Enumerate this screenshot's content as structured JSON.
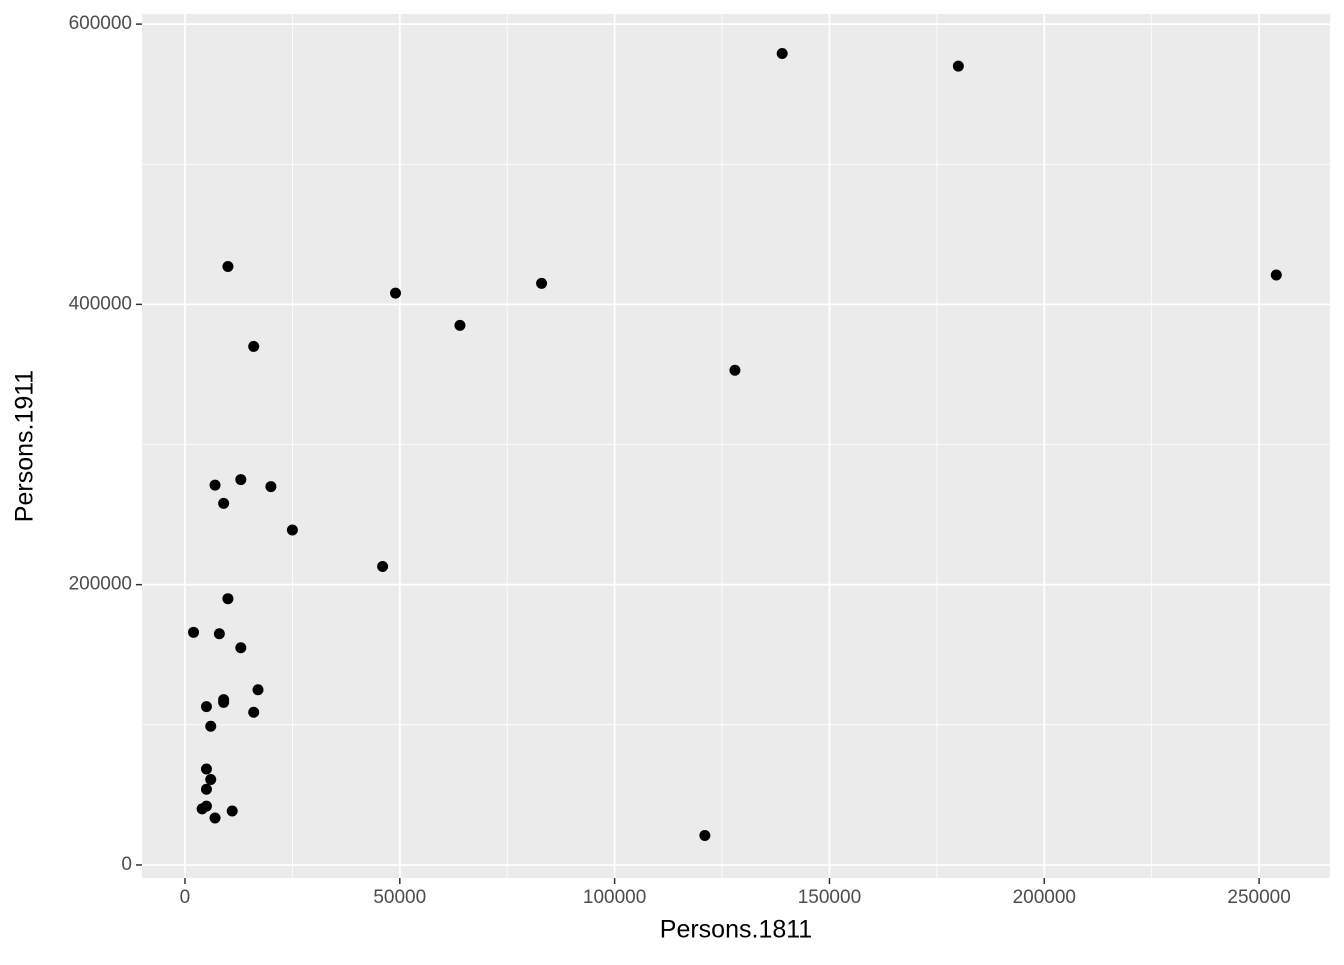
{
  "chart_data": {
    "type": "scatter",
    "x_label": "Persons.1811",
    "y_label": "Persons.1911",
    "x": [
      139000,
      180000,
      254000,
      10000,
      49000,
      83000,
      64000,
      16000,
      128000,
      7000,
      13000,
      20000,
      9000,
      25000,
      46000,
      10000,
      2000,
      8000,
      13000,
      17000,
      9000,
      9000,
      5000,
      16000,
      6000,
      5000,
      6000,
      5000,
      5000,
      4000,
      11000,
      7000,
      121000
    ],
    "values": [
      579000,
      570000,
      421000,
      427000,
      408000,
      415000,
      385000,
      370000,
      353000,
      271000,
      275000,
      270000,
      258000,
      239000,
      213000,
      190000,
      166000,
      165000,
      155000,
      125000,
      118000,
      116000,
      113000,
      109000,
      99000,
      68500,
      61000,
      54000,
      42000,
      40000,
      38500,
      33500,
      21000
    ],
    "color": "#000000",
    "xlim": [
      -10000,
      266500
    ],
    "xticks": [
      0,
      50000,
      100000,
      150000,
      200000,
      250000
    ],
    "xminor": [
      25000,
      75000,
      125000,
      175000,
      225000
    ],
    "ylim": [
      -9300,
      607200
    ],
    "yticks": [
      0,
      200000,
      400000,
      600000
    ],
    "yminor": [
      100000,
      300000,
      500000
    ],
    "grid": true,
    "background": "#ebebeb"
  }
}
